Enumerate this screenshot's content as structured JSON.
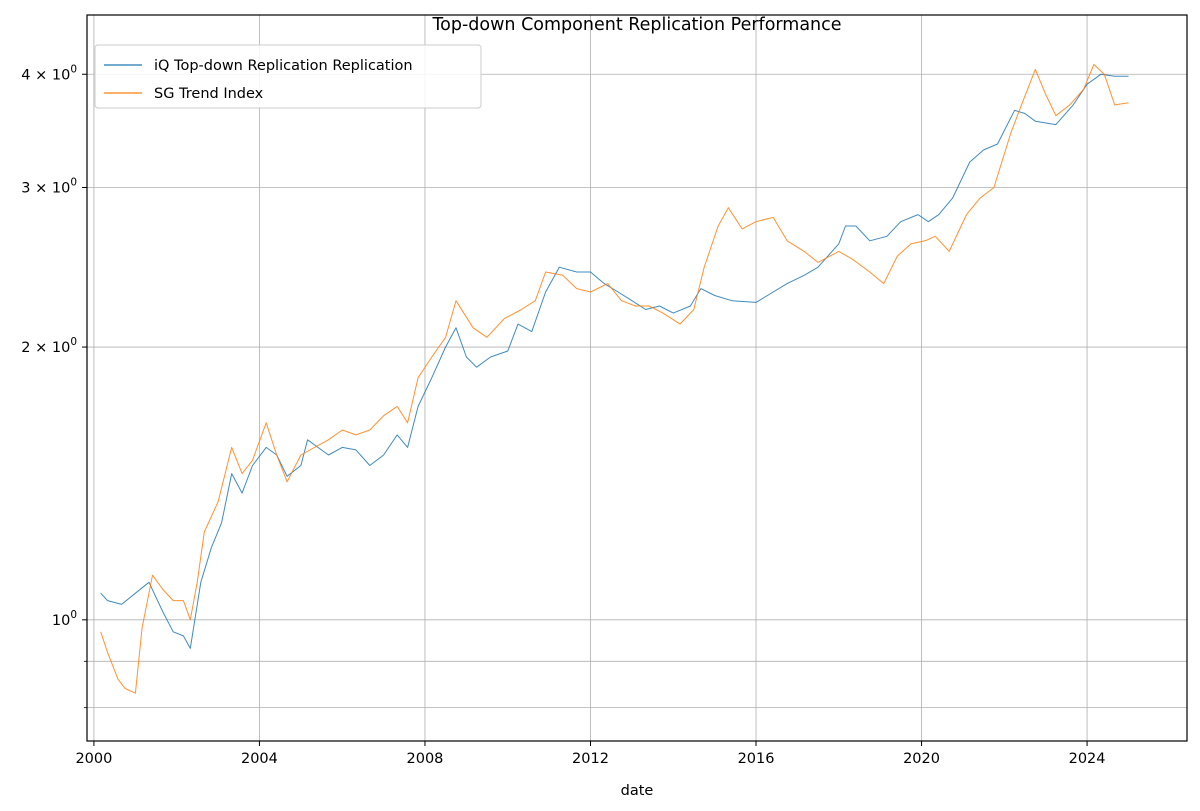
{
  "chart_data": {
    "type": "line",
    "title": "Top-down Component Replication Performance",
    "xlabel": "date",
    "ylabel": "",
    "yscale": "log",
    "xlim": [
      "1999-11-01",
      "2026-06-01"
    ],
    "ylim": [
      0.735,
      4.65
    ],
    "x_ticks": [
      {
        "value": "2000-01-01",
        "label": "2000"
      },
      {
        "value": "2004-01-01",
        "label": "2004"
      },
      {
        "value": "2008-01-01",
        "label": "2008"
      },
      {
        "value": "2012-01-01",
        "label": "2012"
      },
      {
        "value": "2016-01-01",
        "label": "2016"
      },
      {
        "value": "2020-01-01",
        "label": "2020"
      },
      {
        "value": "2024-01-01",
        "label": "2024"
      }
    ],
    "y_major_ticks": [
      {
        "value": 1,
        "base": "10",
        "exp": "0"
      },
      {
        "value": 2,
        "base": "2 × 10",
        "exp": "0"
      },
      {
        "value": 3,
        "base": "3 × 10",
        "exp": "0"
      },
      {
        "value": 4,
        "base": "4 × 10",
        "exp": "0"
      }
    ],
    "y_minor_ticks": [
      0.8,
      0.9
    ],
    "grid": true,
    "legend_position": "top-left",
    "series": [
      {
        "name": "iQ Top-down Replication Replication",
        "color": "#1f77b4",
        "points": [
          [
            "2000-03-01",
            1.07
          ],
          [
            "2000-05-01",
            1.05
          ],
          [
            "2000-09-01",
            1.04
          ],
          [
            "2001-01-01",
            1.07
          ],
          [
            "2001-05-01",
            1.1
          ],
          [
            "2001-09-01",
            1.02
          ],
          [
            "2001-12-01",
            0.97
          ],
          [
            "2002-03-01",
            0.96
          ],
          [
            "2002-05-01",
            0.93
          ],
          [
            "2002-08-01",
            1.1
          ],
          [
            "2002-11-01",
            1.2
          ],
          [
            "2003-02-01",
            1.28
          ],
          [
            "2003-05-01",
            1.45
          ],
          [
            "2003-08-01",
            1.38
          ],
          [
            "2003-11-01",
            1.48
          ],
          [
            "2004-03-01",
            1.55
          ],
          [
            "2004-06-01",
            1.52
          ],
          [
            "2004-09-01",
            1.44
          ],
          [
            "2005-01-01",
            1.48
          ],
          [
            "2005-03-01",
            1.58
          ],
          [
            "2005-06-01",
            1.55
          ],
          [
            "2005-09-01",
            1.52
          ],
          [
            "2006-01-01",
            1.55
          ],
          [
            "2006-05-01",
            1.54
          ],
          [
            "2006-09-01",
            1.48
          ],
          [
            "2007-01-01",
            1.52
          ],
          [
            "2007-05-01",
            1.6
          ],
          [
            "2007-08-01",
            1.55
          ],
          [
            "2007-11-01",
            1.72
          ],
          [
            "2008-03-01",
            1.85
          ],
          [
            "2008-07-01",
            2.0
          ],
          [
            "2008-10-01",
            2.1
          ],
          [
            "2009-01-01",
            1.95
          ],
          [
            "2009-04-01",
            1.9
          ],
          [
            "2009-08-01",
            1.95
          ],
          [
            "2010-01-01",
            1.98
          ],
          [
            "2010-04-01",
            2.12
          ],
          [
            "2010-08-01",
            2.08
          ],
          [
            "2010-12-01",
            2.3
          ],
          [
            "2011-04-01",
            2.45
          ],
          [
            "2011-09-01",
            2.42
          ],
          [
            "2012-01-01",
            2.42
          ],
          [
            "2012-05-01",
            2.35
          ],
          [
            "2012-09-01",
            2.3
          ],
          [
            "2013-01-01",
            2.25
          ],
          [
            "2013-05-01",
            2.2
          ],
          [
            "2013-09-01",
            2.22
          ],
          [
            "2014-01-01",
            2.18
          ],
          [
            "2014-06-01",
            2.22
          ],
          [
            "2014-09-01",
            2.32
          ],
          [
            "2015-01-01",
            2.28
          ],
          [
            "2015-06-01",
            2.25
          ],
          [
            "2016-01-01",
            2.24
          ],
          [
            "2016-06-01",
            2.3
          ],
          [
            "2016-10-01",
            2.35
          ],
          [
            "2017-03-01",
            2.4
          ],
          [
            "2017-07-01",
            2.45
          ],
          [
            "2018-01-01",
            2.6
          ],
          [
            "2018-03-01",
            2.72
          ],
          [
            "2018-06-01",
            2.72
          ],
          [
            "2018-10-01",
            2.62
          ],
          [
            "2019-03-01",
            2.65
          ],
          [
            "2019-07-01",
            2.75
          ],
          [
            "2019-12-01",
            2.8
          ],
          [
            "2020-03-01",
            2.75
          ],
          [
            "2020-06-01",
            2.8
          ],
          [
            "2020-10-01",
            2.92
          ],
          [
            "2021-03-01",
            3.2
          ],
          [
            "2021-07-01",
            3.3
          ],
          [
            "2021-11-01",
            3.35
          ],
          [
            "2022-04-01",
            3.65
          ],
          [
            "2022-07-01",
            3.62
          ],
          [
            "2022-10-01",
            3.55
          ],
          [
            "2023-04-01",
            3.52
          ],
          [
            "2023-09-01",
            3.7
          ],
          [
            "2024-01-01",
            3.9
          ],
          [
            "2024-05-01",
            4.0
          ],
          [
            "2024-09-01",
            3.98
          ],
          [
            "2025-01-01",
            3.98
          ]
        ]
      },
      {
        "name": "SG Trend Index",
        "color": "#ff7f0e",
        "points": [
          [
            "2000-03-01",
            0.97
          ],
          [
            "2000-05-01",
            0.92
          ],
          [
            "2000-08-01",
            0.86
          ],
          [
            "2000-10-01",
            0.84
          ],
          [
            "2001-01-01",
            0.83
          ],
          [
            "2001-03-01",
            0.98
          ],
          [
            "2001-06-01",
            1.12
          ],
          [
            "2001-09-01",
            1.08
          ],
          [
            "2001-12-01",
            1.05
          ],
          [
            "2002-03-01",
            1.05
          ],
          [
            "2002-05-01",
            1.0
          ],
          [
            "2002-07-01",
            1.1
          ],
          [
            "2002-09-01",
            1.25
          ],
          [
            "2003-01-01",
            1.35
          ],
          [
            "2003-05-01",
            1.55
          ],
          [
            "2003-08-01",
            1.45
          ],
          [
            "2003-11-01",
            1.5
          ],
          [
            "2004-03-01",
            1.65
          ],
          [
            "2004-06-01",
            1.52
          ],
          [
            "2004-09-01",
            1.42
          ],
          [
            "2005-01-01",
            1.52
          ],
          [
            "2005-05-01",
            1.55
          ],
          [
            "2005-09-01",
            1.58
          ],
          [
            "2006-01-01",
            1.62
          ],
          [
            "2006-05-01",
            1.6
          ],
          [
            "2006-09-01",
            1.62
          ],
          [
            "2007-01-01",
            1.68
          ],
          [
            "2007-05-01",
            1.72
          ],
          [
            "2007-08-01",
            1.65
          ],
          [
            "2007-11-01",
            1.85
          ],
          [
            "2008-03-01",
            1.95
          ],
          [
            "2008-07-01",
            2.05
          ],
          [
            "2008-10-01",
            2.25
          ],
          [
            "2009-03-01",
            2.1
          ],
          [
            "2009-07-01",
            2.05
          ],
          [
            "2009-12-01",
            2.15
          ],
          [
            "2010-05-01",
            2.2
          ],
          [
            "2010-09-01",
            2.25
          ],
          [
            "2010-12-01",
            2.42
          ],
          [
            "2011-05-01",
            2.4
          ],
          [
            "2011-09-01",
            2.32
          ],
          [
            "2012-01-01",
            2.3
          ],
          [
            "2012-06-01",
            2.35
          ],
          [
            "2012-10-01",
            2.25
          ],
          [
            "2013-02-01",
            2.22
          ],
          [
            "2013-06-01",
            2.22
          ],
          [
            "2013-10-01",
            2.18
          ],
          [
            "2014-03-01",
            2.12
          ],
          [
            "2014-07-01",
            2.2
          ],
          [
            "2014-10-01",
            2.45
          ],
          [
            "2015-02-01",
            2.72
          ],
          [
            "2015-05-01",
            2.85
          ],
          [
            "2015-09-01",
            2.7
          ],
          [
            "2016-01-01",
            2.75
          ],
          [
            "2016-06-01",
            2.78
          ],
          [
            "2016-10-01",
            2.62
          ],
          [
            "2017-03-01",
            2.55
          ],
          [
            "2017-07-01",
            2.48
          ],
          [
            "2018-01-01",
            2.55
          ],
          [
            "2018-05-01",
            2.5
          ],
          [
            "2018-10-01",
            2.42
          ],
          [
            "2019-02-01",
            2.35
          ],
          [
            "2019-06-01",
            2.52
          ],
          [
            "2019-10-01",
            2.6
          ],
          [
            "2020-02-01",
            2.62
          ],
          [
            "2020-05-01",
            2.65
          ],
          [
            "2020-09-01",
            2.55
          ],
          [
            "2021-02-01",
            2.8
          ],
          [
            "2021-06-01",
            2.92
          ],
          [
            "2021-10-01",
            3.0
          ],
          [
            "2022-03-01",
            3.45
          ],
          [
            "2022-06-01",
            3.7
          ],
          [
            "2022-10-01",
            4.05
          ],
          [
            "2023-01-01",
            3.8
          ],
          [
            "2023-04-01",
            3.6
          ],
          [
            "2023-08-01",
            3.7
          ],
          [
            "2023-12-01",
            3.85
          ],
          [
            "2024-03-01",
            4.1
          ],
          [
            "2024-06-01",
            4.0
          ],
          [
            "2024-09-01",
            3.7
          ],
          [
            "2025-01-01",
            3.72
          ]
        ]
      }
    ]
  }
}
